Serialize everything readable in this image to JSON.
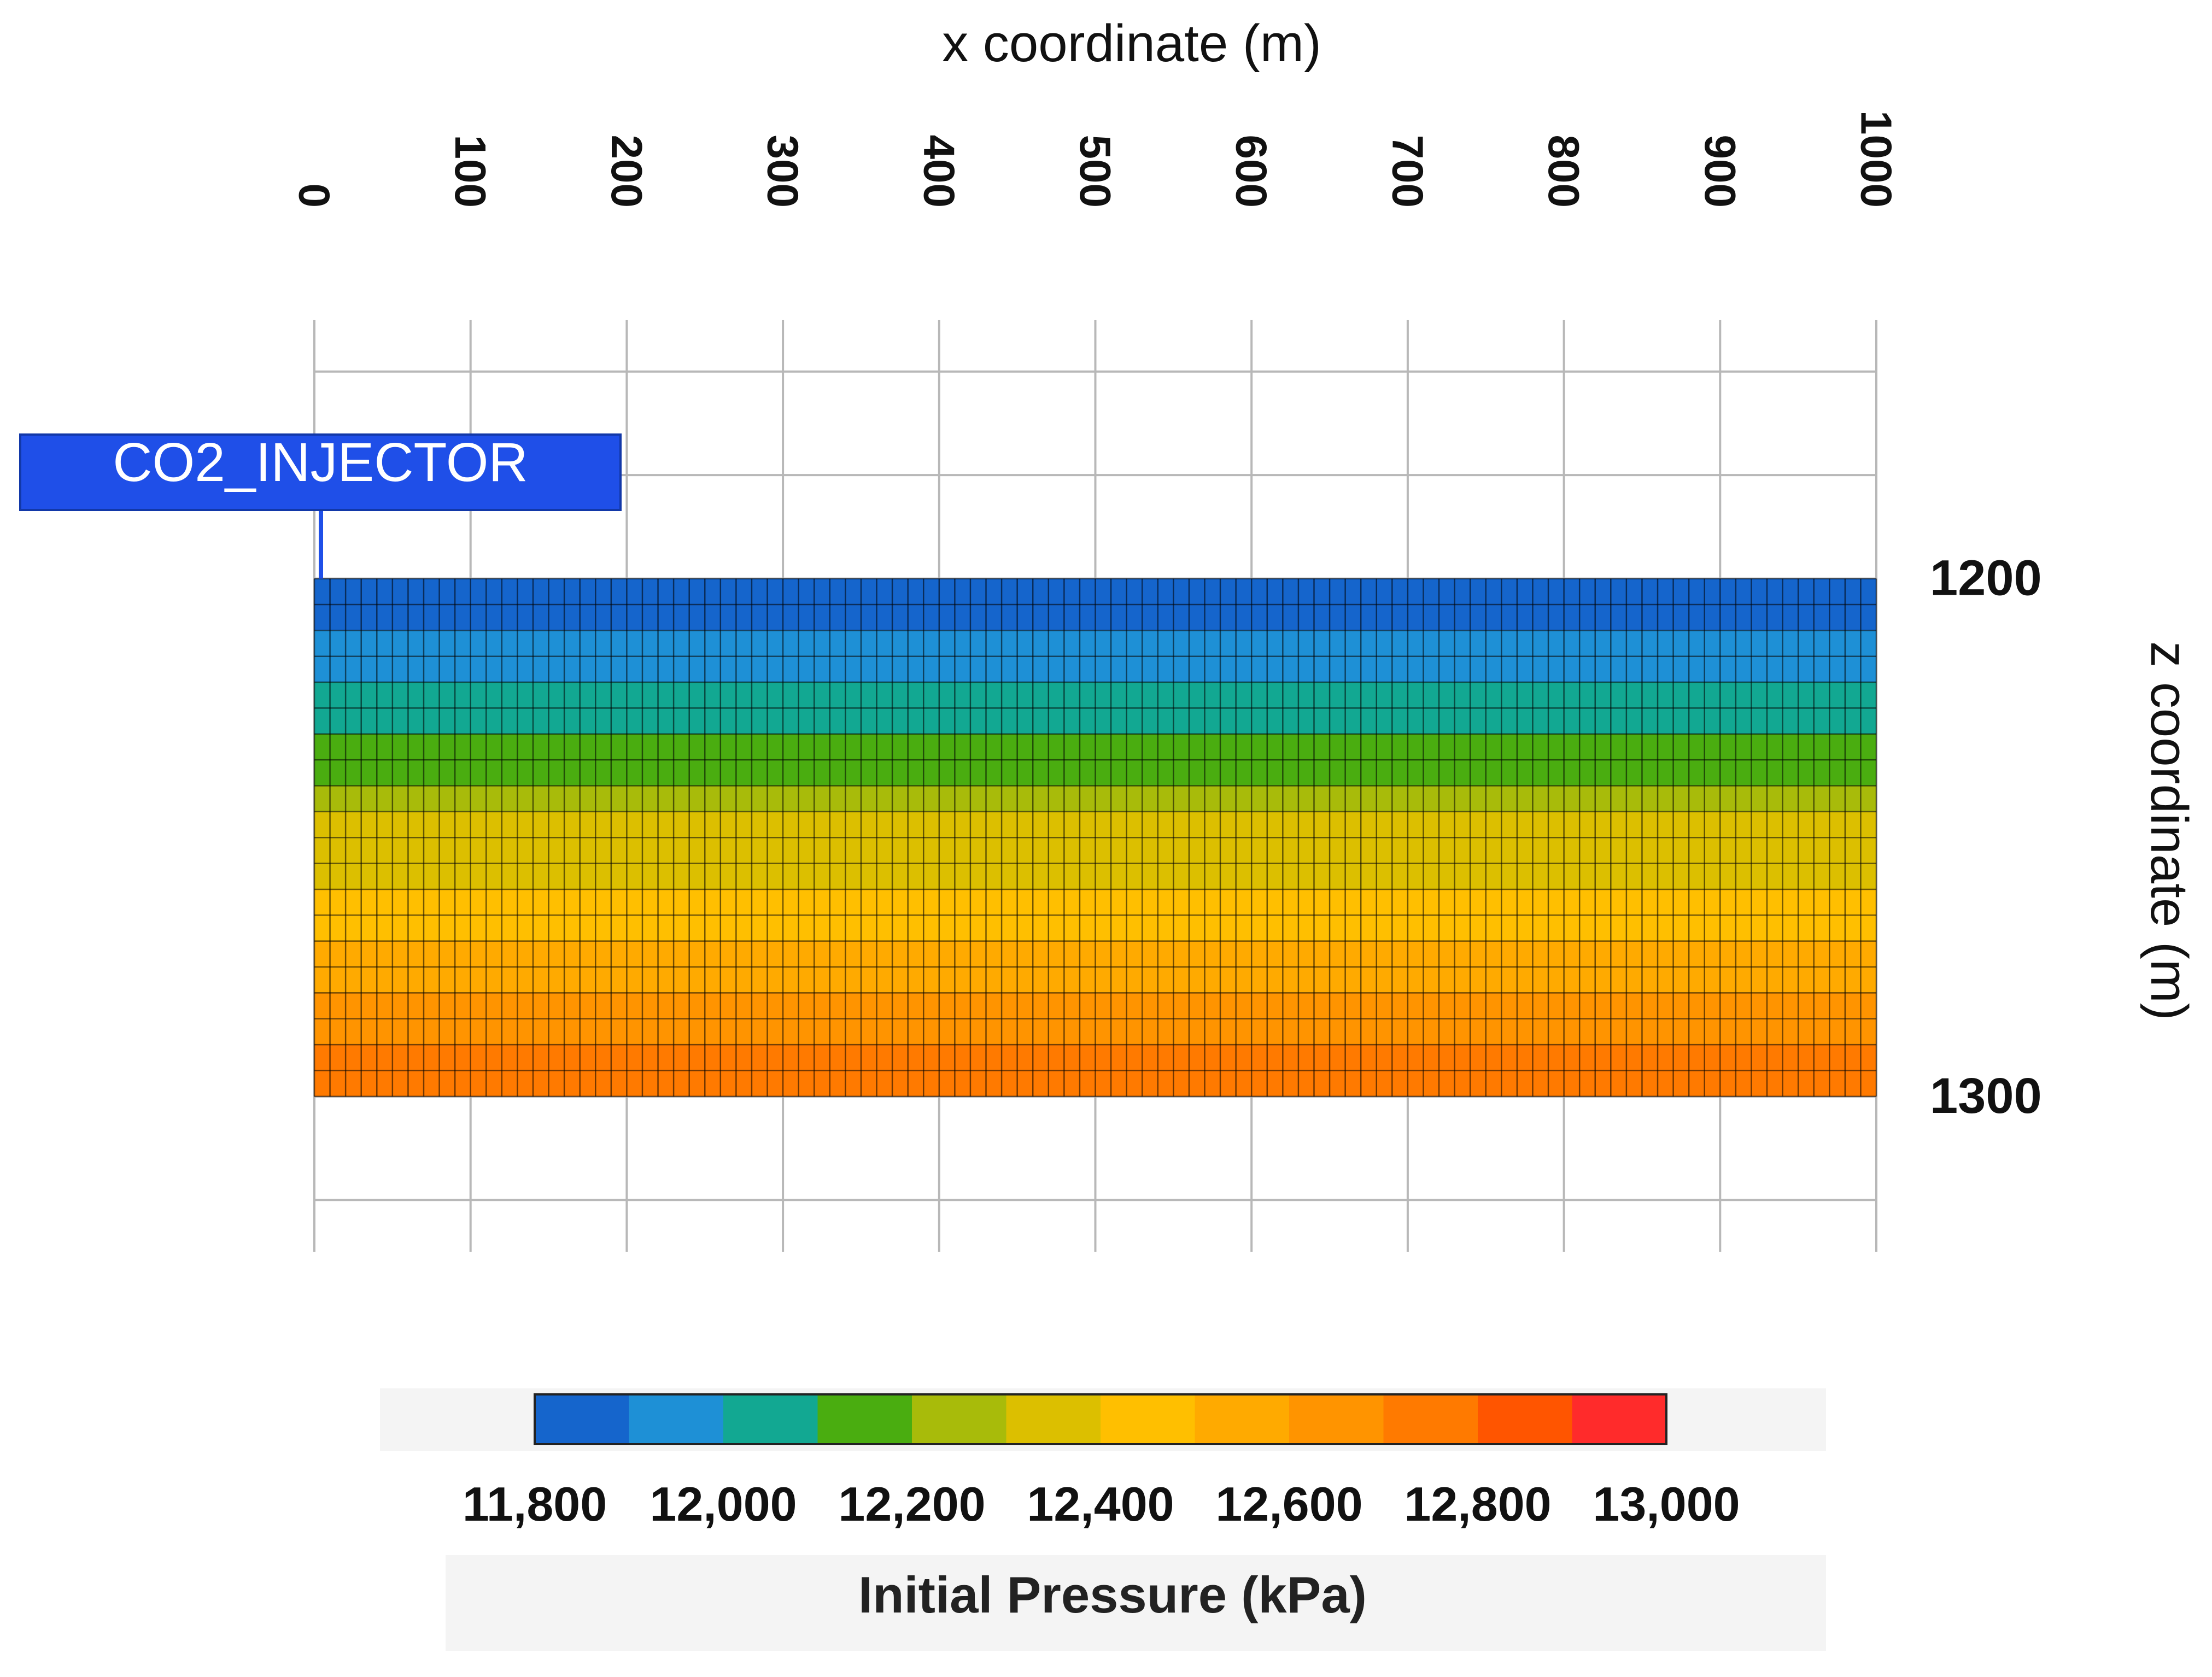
{
  "chart_data": {
    "type": "heatmap",
    "xlabel": "x coordinate (m)",
    "ylabel": "z coordinate (m)",
    "xlim": [
      0,
      1000
    ],
    "zlim": [
      1150,
      1330
    ],
    "x_ticks": [
      "0",
      "100",
      "200",
      "300",
      "400",
      "500",
      "600",
      "700",
      "800",
      "900",
      "1000"
    ],
    "z_ticks": [
      "1200",
      "1300"
    ],
    "grid": true,
    "reservoir": {
      "x_range": [
        0,
        1000
      ],
      "z_range": [
        1200,
        1300
      ],
      "n_cols": 100,
      "n_layers": 20,
      "layer_pressure_kpa": [
        11830,
        11870,
        11920,
        11970,
        12030,
        12080,
        12140,
        12190,
        12240,
        12300,
        12340,
        12380,
        12430,
        12480,
        12530,
        12570,
        12620,
        12660,
        12700,
        12740
      ]
    },
    "well": {
      "label": "CO2_INJECTOR",
      "x": 0,
      "color": "#1f4fe8"
    },
    "colorbar": {
      "title": "Initial Pressure (kPa)",
      "min": 11800,
      "max": 13000,
      "tick_values": [
        11800,
        12000,
        12200,
        12400,
        12600,
        12800,
        13000
      ],
      "tick_labels": [
        "11,800",
        "12,000",
        "12,200",
        "12,400",
        "12,600",
        "12,800",
        "13,000"
      ],
      "colors": [
        "#1565cc",
        "#1e90d6",
        "#12a892",
        "#4aad10",
        "#a8bb0a",
        "#dcbf00",
        "#ffbf00",
        "#ffaa00",
        "#ff9400",
        "#ff7a00",
        "#ff5500",
        "#ff2b2b"
      ]
    }
  }
}
